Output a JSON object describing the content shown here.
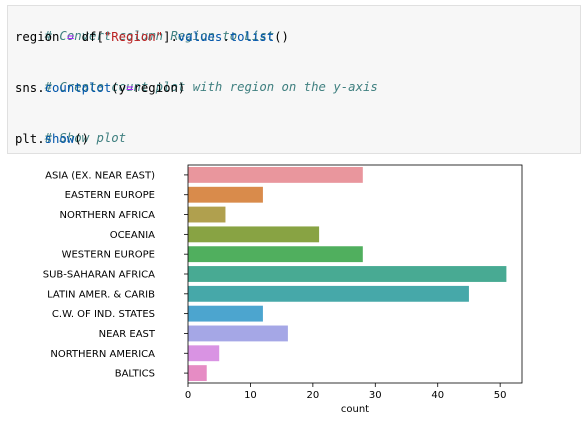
{
  "code": {
    "line1_comment": "# Convert column Region to List",
    "line2": {
      "var": "region",
      "eq": "=",
      "obj": "df[",
      "str": "\"Region\"",
      "rest": "].",
      "attr1": "values",
      "dot": ".",
      "attr2": "tolist",
      "call": "()"
    },
    "line4_comment": "# Create count plot with region on the y-axis",
    "line5": {
      "obj": "sns.",
      "fn": "countplot",
      "open": "(y",
      "eq": "=",
      "arg": "region)"
    },
    "line7_comment": "# Show plot",
    "line8": {
      "obj": "plt.",
      "fn": "show",
      "call": "()"
    }
  },
  "chart_data": {
    "type": "bar",
    "orientation": "horizontal",
    "categories": [
      "ASIA (EX. NEAR EAST)",
      "EASTERN EUROPE",
      "NORTHERN AFRICA",
      "OCEANIA",
      "WESTERN EUROPE",
      "SUB-SAHARAN AFRICA",
      "LATIN AMER. & CARIB",
      "C.W. OF IND. STATES",
      "NEAR EAST",
      "NORTHERN AMERICA",
      "BALTICS"
    ],
    "values": [
      28,
      12,
      6,
      21,
      28,
      51,
      45,
      12,
      16,
      5,
      3
    ],
    "colors": [
      "#e9969d",
      "#d98b4b",
      "#b0a04e",
      "#88a343",
      "#50af5e",
      "#48aa93",
      "#46a8a9",
      "#4ca5cf",
      "#a5a7e6",
      "#d993e3",
      "#e68cc4"
    ],
    "xlabel": "count",
    "ylabel": "",
    "xlim": [
      0,
      53.5
    ],
    "xticks": [
      0,
      10,
      20,
      30,
      40,
      50
    ],
    "grid": false
  }
}
